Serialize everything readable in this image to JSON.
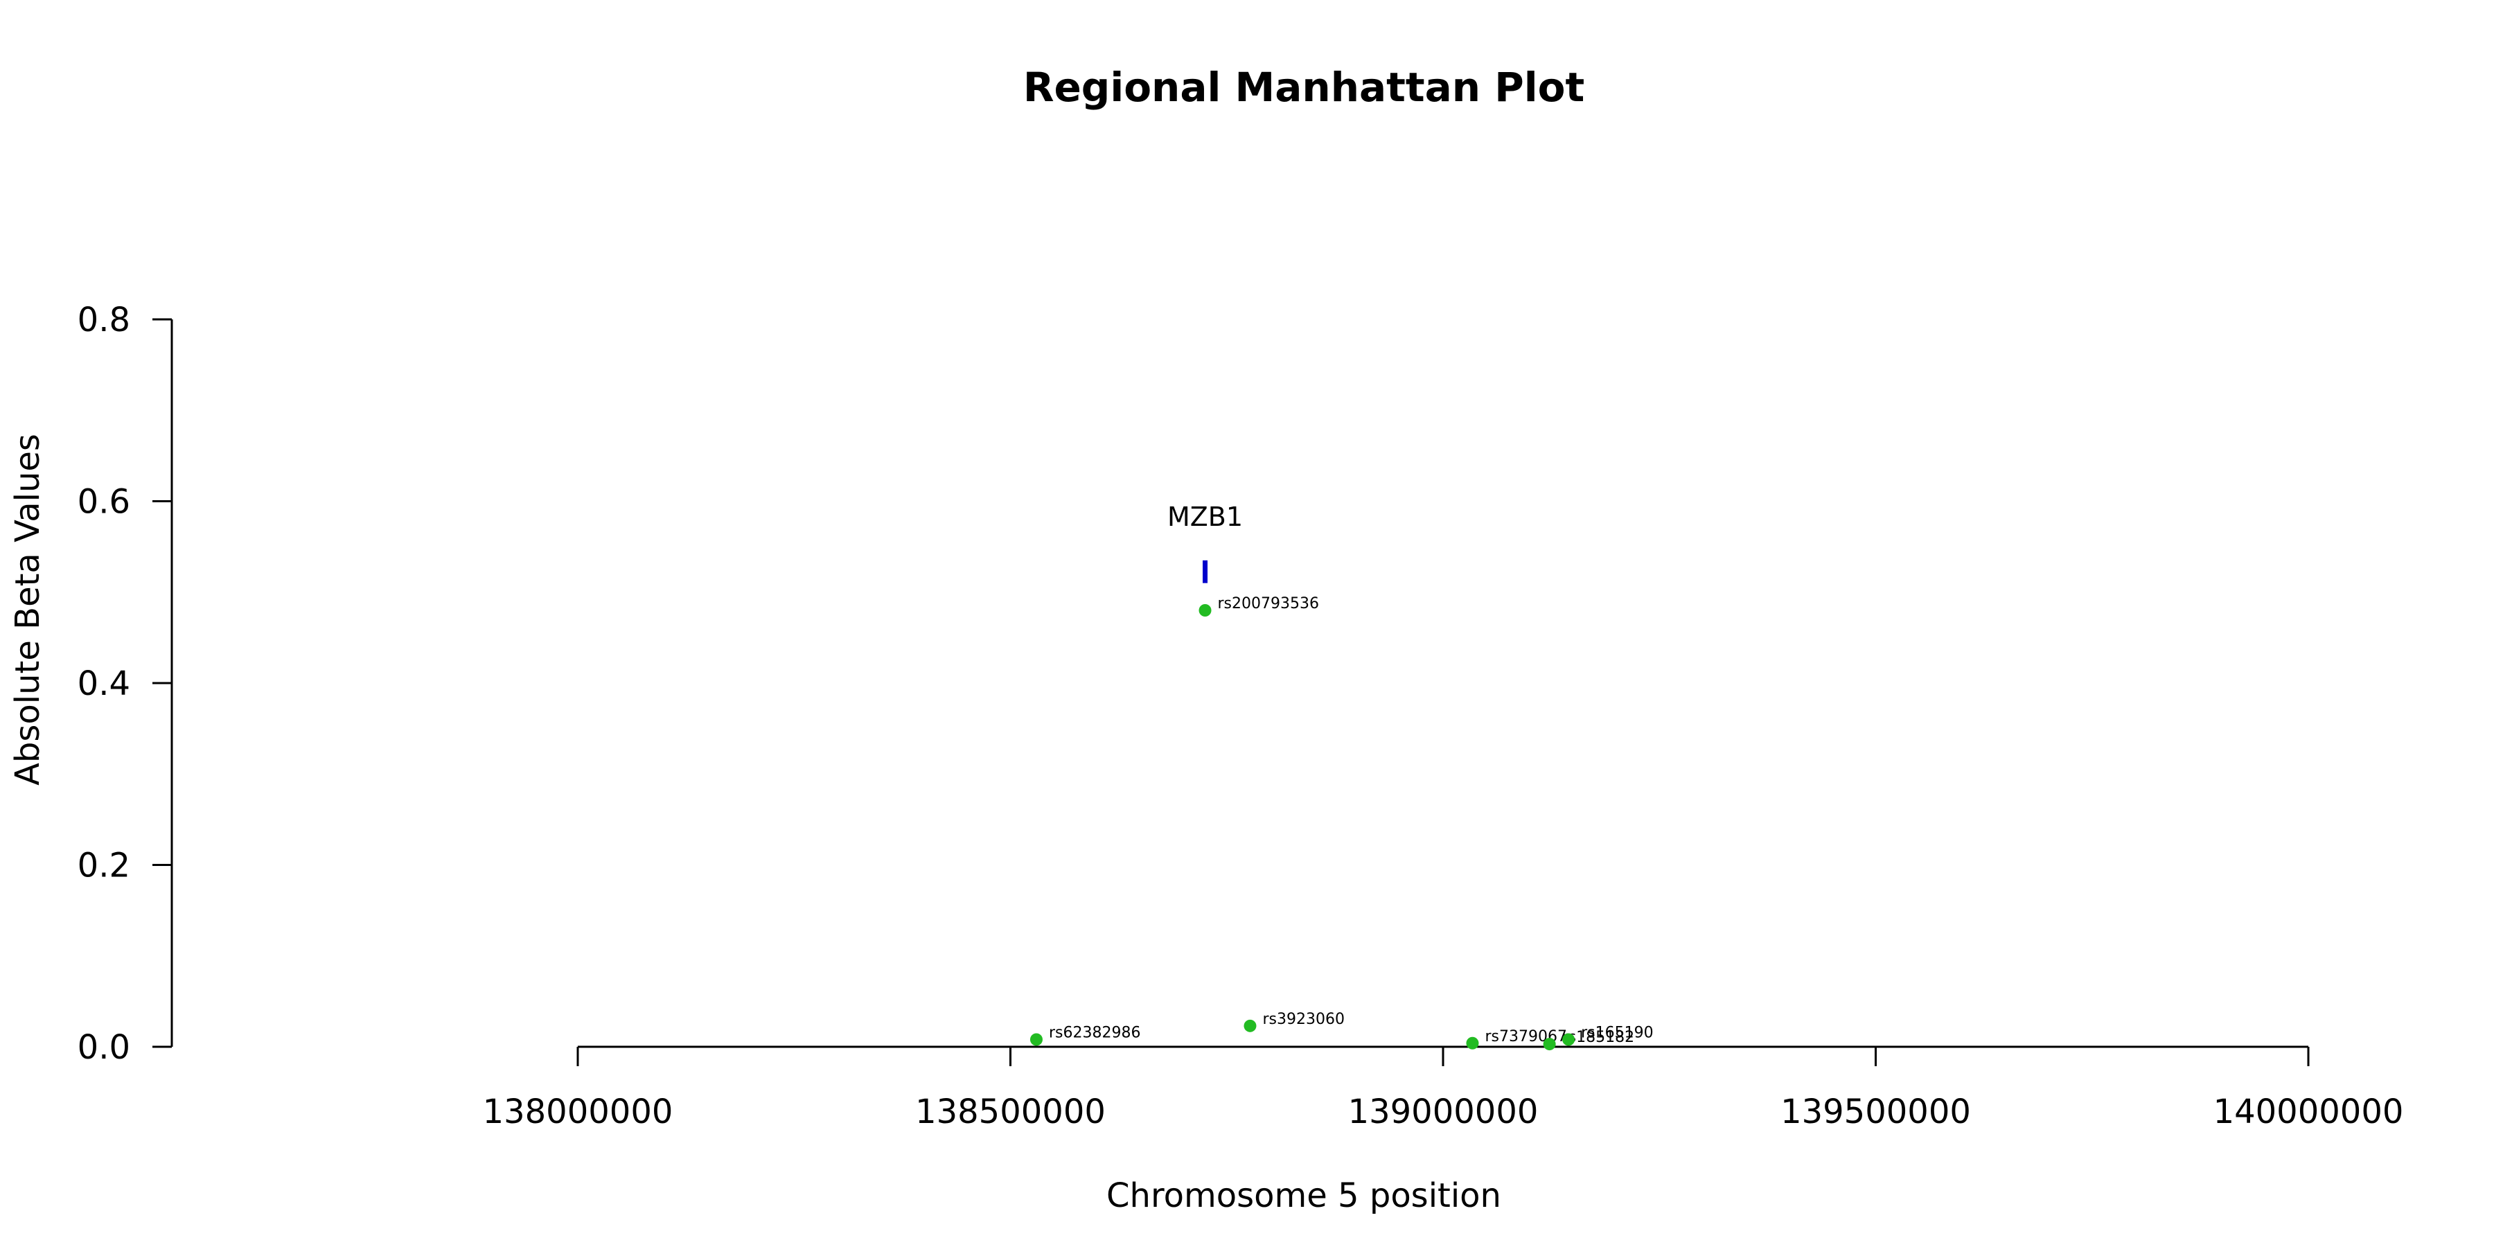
{
  "chart_data": {
    "type": "scatter",
    "title": "Regional Manhattan Plot",
    "xlabel": "Chromosome 5 position",
    "ylabel": "Absolute Beta Values",
    "xlim": [
      138000000,
      140000000
    ],
    "ylim": [
      0,
      0.8
    ],
    "x_ticks": [
      138000000,
      138500000,
      139000000,
      139500000,
      140000000
    ],
    "y_ticks": [
      0.0,
      0.2,
      0.4,
      0.6,
      0.8
    ],
    "x_tick_labels": [
      "138000000",
      "138500000",
      "139000000",
      "139500000",
      "140000000"
    ],
    "y_tick_labels": [
      "0.0",
      "0.2",
      "0.4",
      "0.6",
      "0.8"
    ],
    "grid": false,
    "point_color": "#22bb22",
    "points": [
      {
        "label": "rs62382986",
        "x": 138530000,
        "y": 0.008
      },
      {
        "label": "rs200793536",
        "x": 138725000,
        "y": 0.48
      },
      {
        "label": "rs3923060",
        "x": 138777000,
        "y": 0.023
      },
      {
        "label": "rs7379067",
        "x": 139034000,
        "y": 0.004
      },
      {
        "label": "rs185182",
        "x": 139123000,
        "y": 0.003
      },
      {
        "label": "rs165190",
        "x": 139145000,
        "y": 0.008
      }
    ],
    "genes": [
      {
        "label": "MZB1",
        "x": 138725000,
        "y_min": 0.51,
        "y_max": 0.535,
        "color": "#0000cc"
      }
    ]
  }
}
